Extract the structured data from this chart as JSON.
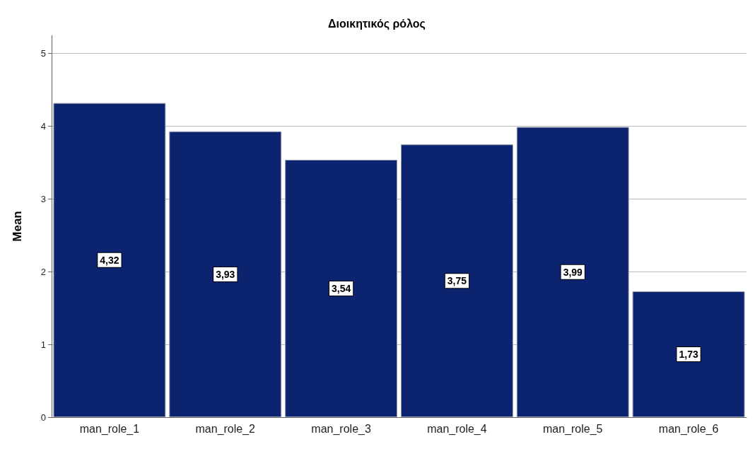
{
  "chart_data": {
    "type": "bar",
    "title": "Διοικητικός ρόλος",
    "ylabel": "Mean",
    "categories": [
      "man_role_1",
      "man_role_2",
      "man_role_3",
      "man_role_4",
      "man_role_5",
      "man_role_6"
    ],
    "values": [
      4.32,
      3.93,
      3.54,
      3.75,
      3.99,
      1.73
    ],
    "value_labels": [
      "4,32",
      "3,93",
      "3,54",
      "3,75",
      "3,99",
      "1,73"
    ],
    "color": "#0c2470",
    "ylim": [
      0,
      5.25
    ],
    "yticks": [
      0,
      1,
      2,
      3,
      4,
      5
    ],
    "grid": "y"
  }
}
